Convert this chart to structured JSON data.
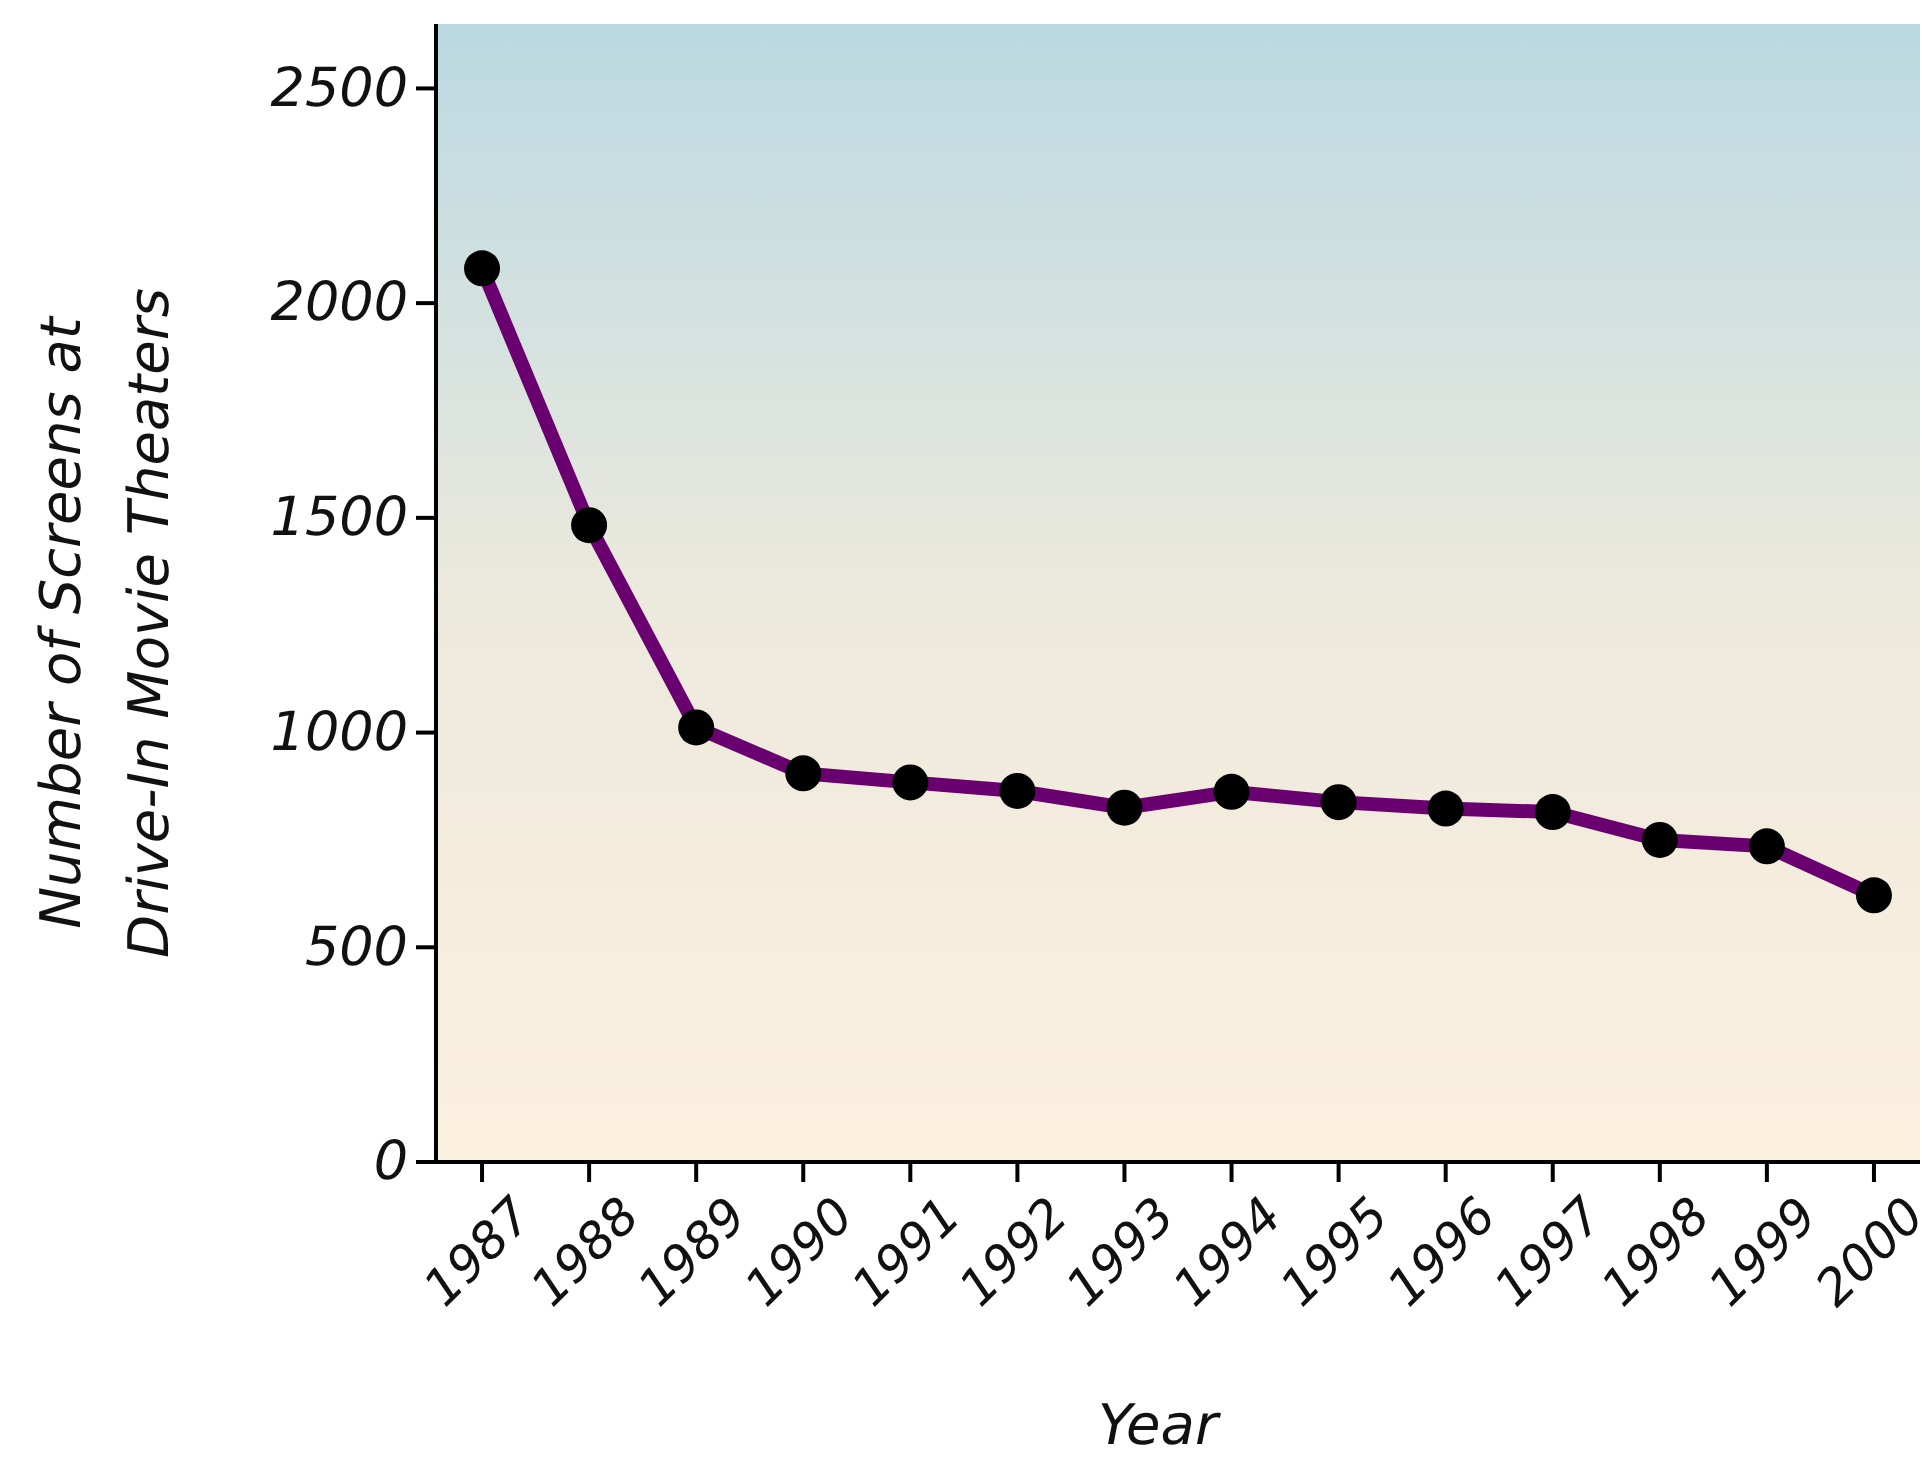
{
  "chart_data": {
    "type": "line",
    "xlabel": "Year",
    "ylabel": "Number of Screens at Drive-In Movie Theaters",
    "categories": [
      "1987",
      "1988",
      "1989",
      "1990",
      "1991",
      "1992",
      "1993",
      "1994",
      "1995",
      "1996",
      "1997",
      "1998",
      "1999",
      "2000"
    ],
    "series": [
      {
        "color": "#6a006f",
        "values": [
          2081,
          1483,
          1012,
          905,
          884,
          864,
          825,
          862,
          838,
          823,
          815,
          750,
          735,
          621
        ]
      }
    ],
    "ylim": [
      0,
      2650
    ],
    "yticks": [
      0,
      500,
      1000,
      1500,
      2000,
      2500
    ],
    "marker": "circle",
    "line_style": "solid",
    "grid": false
  }
}
